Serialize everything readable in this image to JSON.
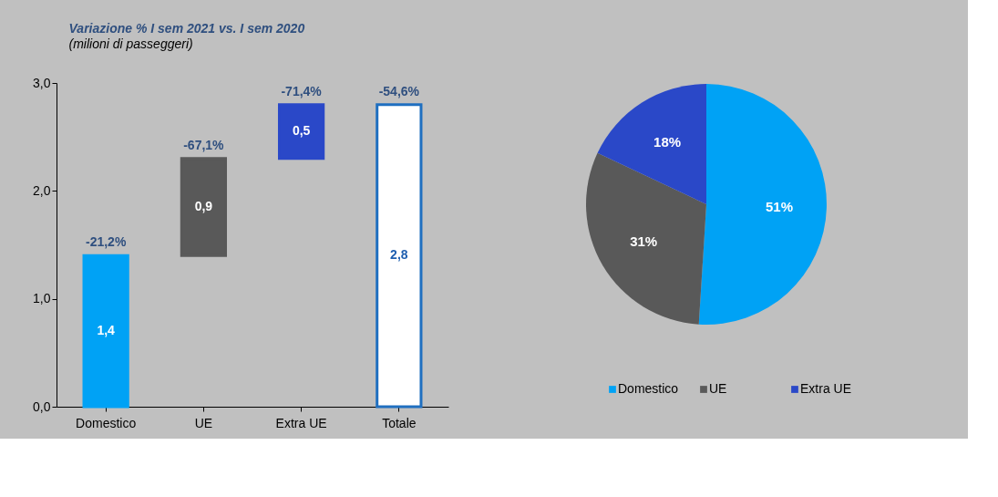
{
  "chart_data": [
    {
      "type": "bar",
      "title": "Variazione % I sem 2021 vs. I sem 2020",
      "subtitle": "(milioni di passeggeri)",
      "categories": [
        "Domestico",
        "UE",
        "Extra UE",
        "Totale"
      ],
      "values": [
        1.4,
        0.9,
        0.5,
        2.8
      ],
      "base": [
        0,
        1.4,
        2.3,
        0
      ],
      "colors": [
        "#00a2f5",
        "#595959",
        "#2a48c8",
        "#ffffff"
      ],
      "value_labels": [
        "1,4",
        "0,9",
        "0,5",
        "2,8"
      ],
      "annotations": [
        {
          "text": "-21,2%",
          "x": "Domestico",
          "y": 1.4
        },
        {
          "text": "-67,1%",
          "x": "UE",
          "y": 2.3
        },
        {
          "text": "-71,4%",
          "x": "Extra UE",
          "y": 2.8
        },
        {
          "text": "-54,6%",
          "x": "Totale",
          "y": 2.8
        }
      ],
      "ylim": [
        0,
        3
      ],
      "yticks": [
        {
          "value": 0,
          "label": "0,0"
        },
        {
          "value": 1,
          "label": "1,0"
        },
        {
          "value": 2,
          "label": "2,0"
        },
        {
          "value": 3,
          "label": "3,0"
        }
      ],
      "grid": false
    },
    {
      "type": "pie",
      "categories": [
        "Domestico",
        "UE",
        "Extra UE"
      ],
      "values": [
        51,
        31,
        18
      ],
      "colors": [
        "#00a2f5",
        "#595959",
        "#2a48c8"
      ],
      "value_labels": [
        "51%",
        "31%",
        "18%"
      ],
      "legend": "bottom"
    }
  ]
}
